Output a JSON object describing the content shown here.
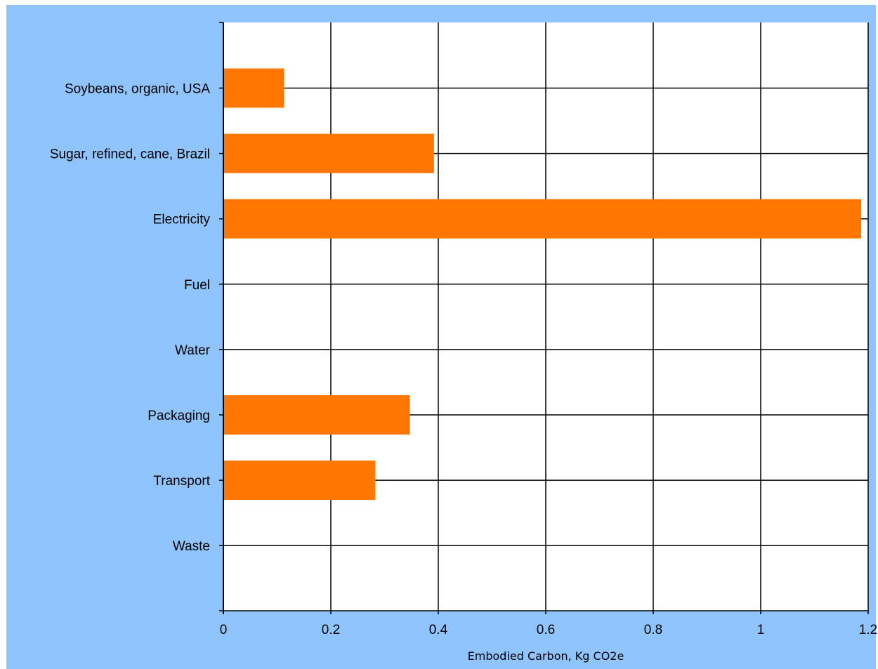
{
  "colors": {
    "frame_background": "#90c4ff",
    "plot_background": "#ffffff",
    "bar": "#ff7700",
    "grid": "#000000"
  },
  "chart_data": {
    "type": "bar",
    "orientation": "horizontal",
    "categories": [
      "Soybeans, organic, USA",
      "Sugar, refined, cane, Brazil",
      "Electricity",
      "Fuel",
      "Water",
      "Packaging",
      "Transport",
      "Waste"
    ],
    "values": [
      0.113,
      0.392,
      1.187,
      0,
      0,
      0.347,
      0.283,
      0
    ],
    "xlabel": "Embodied Carbon, Kg CO2e",
    "ylabel": "",
    "xlim": [
      0,
      1.2
    ],
    "xticks": [
      "0",
      "0.2",
      "0.4",
      "0.6",
      "0.8",
      "1",
      "1.2"
    ],
    "grid": true,
    "legend": "none"
  }
}
